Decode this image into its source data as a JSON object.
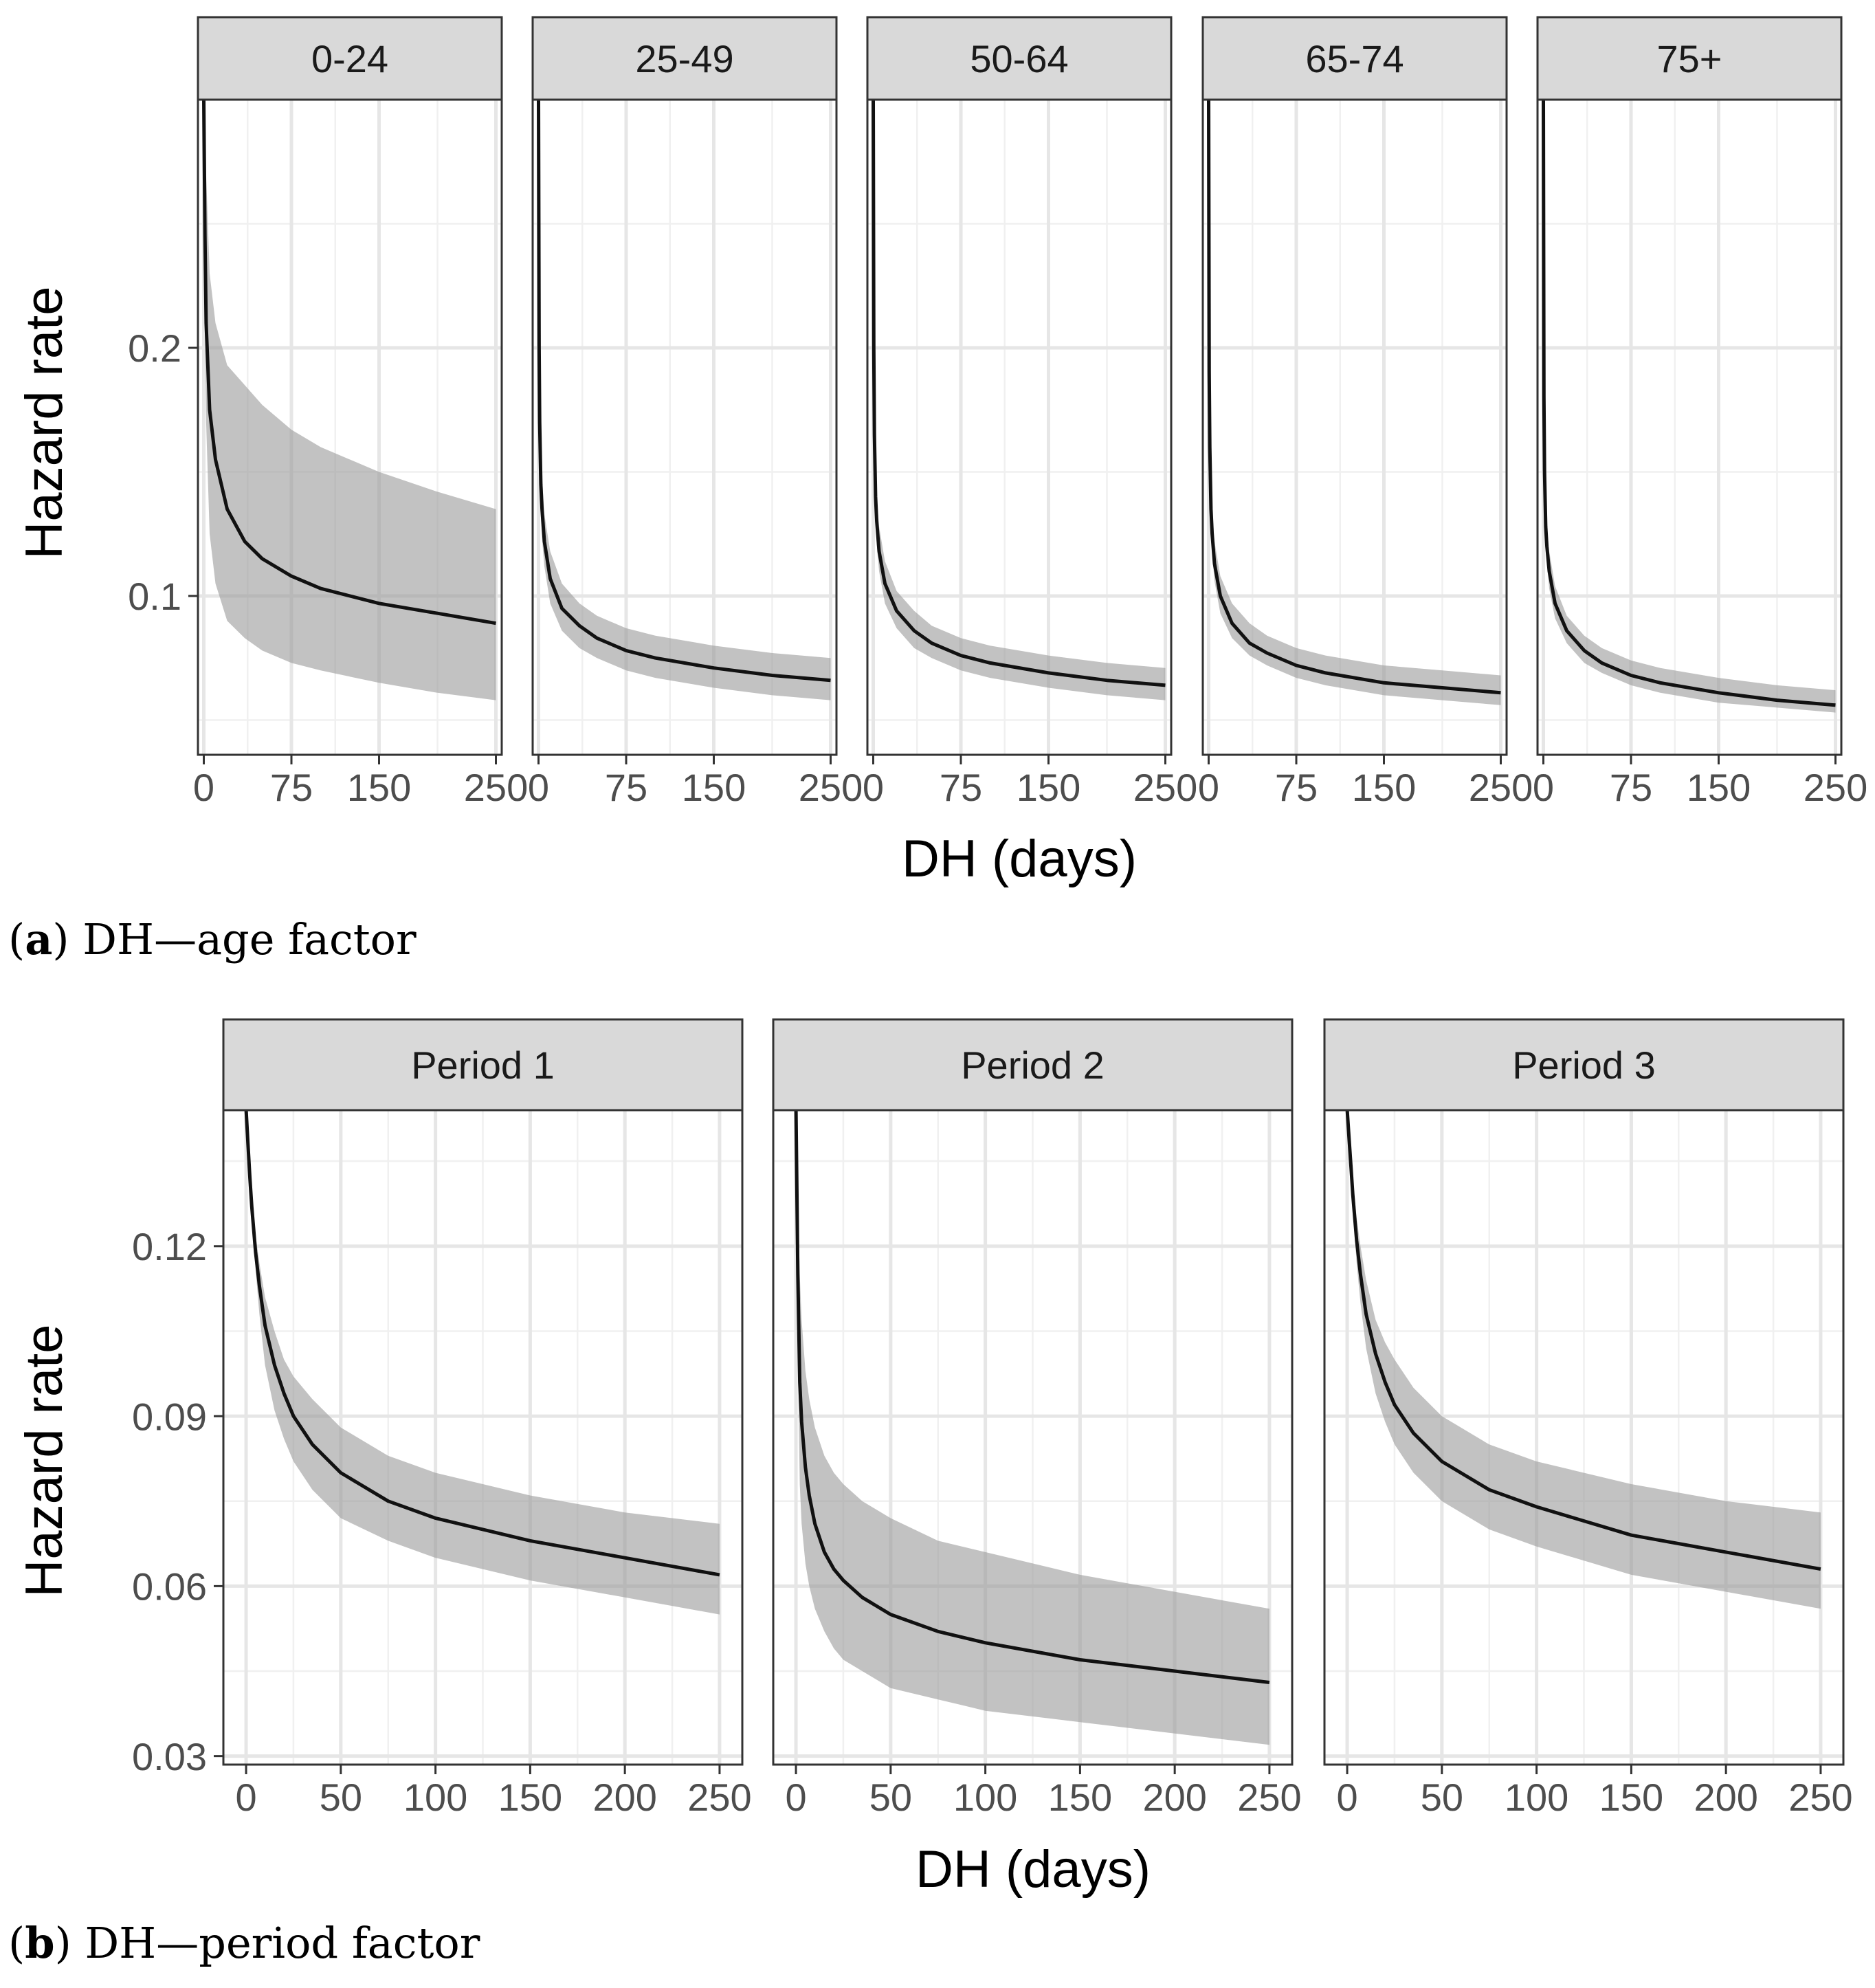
{
  "figure": {
    "caption_a": {
      "letter": "a",
      "text": " DH—age factor"
    },
    "caption_b": {
      "letter": "b",
      "text": " DH—period factor"
    }
  },
  "chart_data": [
    {
      "id": "age",
      "type": "line",
      "facet_by": "age group",
      "xlabel": "DH (days)",
      "ylabel": "Hazard rate",
      "xlim": [
        -5,
        255
      ],
      "ylim": [
        0.036,
        0.3
      ],
      "x_ticks": [
        0,
        75,
        150,
        250
      ],
      "x_tick_labels": [
        "0",
        "75",
        "150",
        "250"
      ],
      "x_minor_ticks": [
        37.5,
        112.5,
        200
      ],
      "y_ticks": [
        0.1,
        0.2
      ],
      "y_tick_labels": [
        "0.1",
        "0.2"
      ],
      "y_minor_ticks": [
        0.05,
        0.15,
        0.25
      ],
      "grid": true,
      "panels": [
        {
          "label": "0-24",
          "x": [
            0,
            1,
            2,
            5,
            10,
            20,
            35,
            50,
            75,
            100,
            150,
            200,
            250
          ],
          "y": [
            0.3,
            0.245,
            0.21,
            0.175,
            0.155,
            0.135,
            0.122,
            0.115,
            0.108,
            0.103,
            0.097,
            0.093,
            0.089
          ],
          "lower": [
            0.3,
            0.21,
            0.17,
            0.125,
            0.105,
            0.09,
            0.083,
            0.078,
            0.073,
            0.07,
            0.065,
            0.061,
            0.058
          ],
          "upper": [
            0.3,
            0.3,
            0.27,
            0.23,
            0.21,
            0.193,
            0.185,
            0.177,
            0.167,
            0.16,
            0.15,
            0.142,
            0.135
          ]
        },
        {
          "label": "25-49",
          "x": [
            0,
            0.5,
            1,
            2,
            3,
            5,
            10,
            20,
            35,
            50,
            75,
            100,
            150,
            200,
            250
          ],
          "y": [
            0.3,
            0.2,
            0.17,
            0.145,
            0.135,
            0.122,
            0.107,
            0.095,
            0.088,
            0.083,
            0.078,
            0.075,
            0.071,
            0.068,
            0.066
          ],
          "lower": [
            0.3,
            0.18,
            0.155,
            0.132,
            0.123,
            0.112,
            0.097,
            0.086,
            0.079,
            0.075,
            0.07,
            0.067,
            0.063,
            0.06,
            0.058
          ],
          "upper": [
            0.3,
            0.22,
            0.185,
            0.158,
            0.148,
            0.133,
            0.118,
            0.105,
            0.097,
            0.092,
            0.087,
            0.084,
            0.08,
            0.077,
            0.075
          ]
        },
        {
          "label": "50-64",
          "x": [
            0,
            0.5,
            1,
            2,
            3,
            5,
            10,
            20,
            35,
            50,
            75,
            100,
            150,
            200,
            250
          ],
          "y": [
            0.3,
            0.2,
            0.165,
            0.14,
            0.13,
            0.118,
            0.105,
            0.094,
            0.086,
            0.081,
            0.076,
            0.073,
            0.069,
            0.066,
            0.064
          ],
          "lower": [
            0.3,
            0.185,
            0.155,
            0.13,
            0.121,
            0.11,
            0.097,
            0.087,
            0.079,
            0.075,
            0.07,
            0.067,
            0.063,
            0.06,
            0.058
          ],
          "upper": [
            0.3,
            0.215,
            0.178,
            0.151,
            0.14,
            0.128,
            0.114,
            0.102,
            0.094,
            0.088,
            0.083,
            0.08,
            0.076,
            0.073,
            0.071
          ]
        },
        {
          "label": "65-74",
          "x": [
            0,
            0.5,
            1,
            2,
            3,
            5,
            10,
            20,
            35,
            50,
            75,
            100,
            150,
            200,
            250
          ],
          "y": [
            0.3,
            0.19,
            0.16,
            0.135,
            0.125,
            0.113,
            0.1,
            0.089,
            0.081,
            0.077,
            0.072,
            0.069,
            0.065,
            0.063,
            0.061
          ],
          "lower": [
            0.3,
            0.18,
            0.15,
            0.126,
            0.117,
            0.106,
            0.093,
            0.083,
            0.076,
            0.072,
            0.067,
            0.064,
            0.06,
            0.058,
            0.056
          ],
          "upper": [
            0.3,
            0.205,
            0.172,
            0.146,
            0.135,
            0.122,
            0.108,
            0.097,
            0.089,
            0.084,
            0.079,
            0.076,
            0.072,
            0.07,
            0.068
          ]
        },
        {
          "label": "75+",
          "x": [
            0,
            0.5,
            1,
            2,
            3,
            5,
            10,
            20,
            35,
            50,
            75,
            100,
            150,
            200,
            250
          ],
          "y": [
            0.3,
            0.18,
            0.15,
            0.128,
            0.12,
            0.11,
            0.097,
            0.086,
            0.078,
            0.073,
            0.068,
            0.065,
            0.061,
            0.058,
            0.056
          ],
          "lower": [
            0.3,
            0.17,
            0.142,
            0.121,
            0.113,
            0.103,
            0.091,
            0.081,
            0.073,
            0.069,
            0.064,
            0.061,
            0.057,
            0.055,
            0.053
          ],
          "upper": [
            0.3,
            0.19,
            0.16,
            0.137,
            0.128,
            0.118,
            0.104,
            0.092,
            0.084,
            0.079,
            0.074,
            0.071,
            0.067,
            0.064,
            0.062
          ]
        }
      ]
    },
    {
      "id": "period",
      "type": "line",
      "facet_by": "period",
      "xlabel": "DH (days)",
      "ylabel": "Hazard rate",
      "xlim": [
        -12,
        262
      ],
      "ylim": [
        0.0285,
        0.144
      ],
      "x_ticks": [
        0,
        50,
        100,
        150,
        200,
        250
      ],
      "x_tick_labels": [
        "0",
        "50",
        "100",
        "150",
        "200",
        "250"
      ],
      "x_minor_ticks": [
        25,
        75,
        125,
        175,
        225
      ],
      "y_ticks": [
        0.03,
        0.06,
        0.09,
        0.12
      ],
      "y_tick_labels": [
        "0.03",
        "0.06",
        "0.09",
        "0.12"
      ],
      "y_minor_ticks": [
        0.045,
        0.075,
        0.105,
        0.135
      ],
      "grid": true,
      "panels": [
        {
          "label": "Period 1",
          "x": [
            0,
            1,
            2,
            3,
            5,
            7,
            10,
            15,
            20,
            25,
            35,
            50,
            75,
            100,
            150,
            200,
            250
          ],
          "y": [
            0.144,
            0.138,
            0.132,
            0.127,
            0.119,
            0.113,
            0.106,
            0.099,
            0.094,
            0.09,
            0.085,
            0.08,
            0.075,
            0.072,
            0.068,
            0.065,
            0.062
          ],
          "lower": [
            0.144,
            0.138,
            0.132,
            0.127,
            0.116,
            0.108,
            0.099,
            0.091,
            0.086,
            0.082,
            0.077,
            0.072,
            0.068,
            0.065,
            0.061,
            0.058,
            0.055
          ],
          "upper": [
            0.144,
            0.139,
            0.134,
            0.13,
            0.122,
            0.117,
            0.111,
            0.105,
            0.1,
            0.097,
            0.093,
            0.088,
            0.083,
            0.08,
            0.076,
            0.073,
            0.071
          ]
        },
        {
          "label": "Period 2",
          "x": [
            0,
            1,
            2,
            3,
            5,
            7,
            10,
            15,
            20,
            25,
            35,
            50,
            75,
            100,
            150,
            200,
            250
          ],
          "y": [
            0.144,
            0.115,
            0.096,
            0.089,
            0.081,
            0.076,
            0.071,
            0.066,
            0.063,
            0.061,
            0.058,
            0.055,
            0.052,
            0.05,
            0.047,
            0.045,
            0.043
          ],
          "lower": [
            0.144,
            0.1,
            0.078,
            0.071,
            0.064,
            0.06,
            0.056,
            0.052,
            0.049,
            0.047,
            0.045,
            0.042,
            0.04,
            0.038,
            0.036,
            0.034,
            0.032
          ],
          "upper": [
            0.144,
            0.13,
            0.115,
            0.107,
            0.098,
            0.093,
            0.088,
            0.083,
            0.08,
            0.078,
            0.075,
            0.072,
            0.068,
            0.066,
            0.062,
            0.059,
            0.056
          ]
        },
        {
          "label": "Period 3",
          "x": [
            0,
            1,
            2,
            3,
            5,
            7,
            10,
            15,
            20,
            25,
            35,
            50,
            75,
            100,
            150,
            200,
            250
          ],
          "y": [
            0.144,
            0.139,
            0.134,
            0.129,
            0.121,
            0.115,
            0.108,
            0.101,
            0.096,
            0.092,
            0.087,
            0.082,
            0.077,
            0.074,
            0.069,
            0.066,
            0.063
          ],
          "lower": [
            0.144,
            0.138,
            0.132,
            0.127,
            0.117,
            0.11,
            0.102,
            0.094,
            0.089,
            0.085,
            0.08,
            0.075,
            0.07,
            0.067,
            0.062,
            0.059,
            0.056
          ],
          "upper": [
            0.144,
            0.14,
            0.136,
            0.132,
            0.125,
            0.12,
            0.114,
            0.107,
            0.103,
            0.1,
            0.095,
            0.09,
            0.085,
            0.082,
            0.078,
            0.075,
            0.073
          ]
        }
      ]
    }
  ]
}
